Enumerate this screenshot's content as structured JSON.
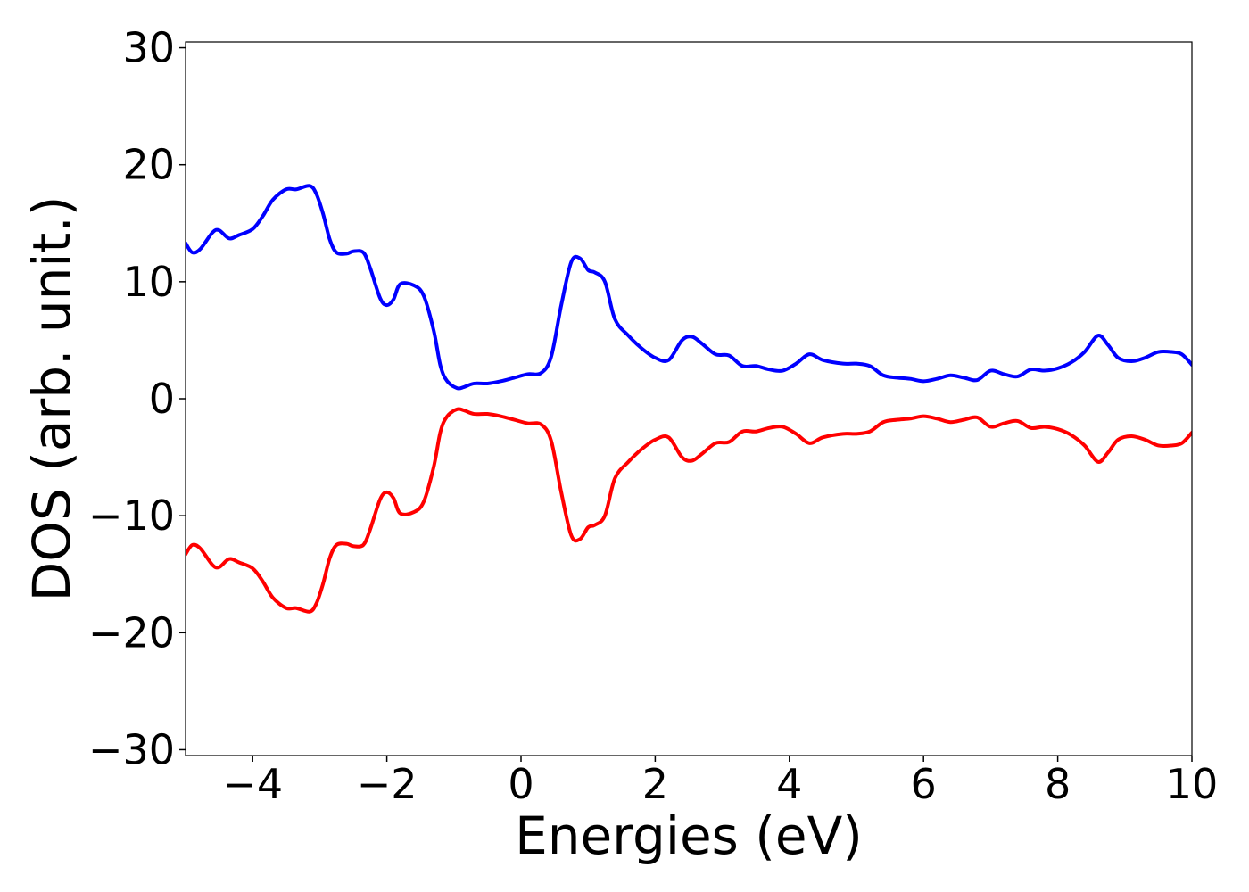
{
  "chart_data": {
    "type": "line",
    "xlabel": "Energies (eV)",
    "ylabel": "DOS (arb. unit.)",
    "xlim": [
      -5,
      10
    ],
    "ylim": [
      -30.5,
      30.5
    ],
    "x_ticks": [
      -4,
      -2,
      0,
      2,
      4,
      6,
      8,
      10
    ],
    "x_tick_labels": [
      "−4",
      "−2",
      "0",
      "2",
      "4",
      "6",
      "8",
      "10"
    ],
    "y_ticks": [
      -30,
      -20,
      -10,
      0,
      10,
      20,
      30
    ],
    "y_tick_labels": [
      "−30",
      "−20",
      "−10",
      "0",
      "10",
      "20",
      "30"
    ],
    "grid": false,
    "series": [
      {
        "color": "#0000ff",
        "x": [
          -5.0,
          -4.9,
          -4.78,
          -4.6,
          -4.5,
          -4.35,
          -4.2,
          -4.0,
          -3.85,
          -3.7,
          -3.5,
          -3.35,
          -3.15,
          -3.05,
          -2.95,
          -2.85,
          -2.75,
          -2.6,
          -2.5,
          -2.35,
          -2.25,
          -2.1,
          -2.0,
          -1.9,
          -1.8,
          -1.6,
          -1.45,
          -1.3,
          -1.2,
          -1.1,
          -0.95,
          -0.85,
          -0.7,
          -0.5,
          -0.3,
          -0.1,
          0.1,
          0.3,
          0.45,
          0.6,
          0.75,
          0.88,
          1.0,
          1.1,
          1.25,
          1.4,
          1.6,
          1.8,
          2.0,
          2.2,
          2.4,
          2.55,
          2.7,
          2.9,
          3.1,
          3.3,
          3.5,
          3.7,
          3.9,
          4.1,
          4.3,
          4.5,
          4.8,
          5.0,
          5.2,
          5.4,
          5.6,
          5.8,
          6.0,
          6.2,
          6.4,
          6.6,
          6.8,
          7.0,
          7.2,
          7.4,
          7.6,
          7.8,
          8.0,
          8.2,
          8.4,
          8.6,
          8.75,
          8.9,
          9.1,
          9.3,
          9.5,
          9.7,
          9.85,
          10.0
        ],
        "values": [
          13.3,
          12.5,
          12.8,
          14.2,
          14.4,
          13.7,
          14.0,
          14.5,
          15.6,
          17.0,
          17.9,
          17.9,
          18.2,
          17.5,
          15.8,
          13.6,
          12.5,
          12.4,
          12.6,
          12.5,
          11.2,
          8.6,
          8.0,
          8.5,
          9.8,
          9.7,
          8.8,
          5.8,
          2.8,
          1.5,
          0.9,
          1.0,
          1.3,
          1.3,
          1.5,
          1.8,
          2.1,
          2.2,
          3.6,
          8.0,
          11.7,
          12.0,
          11.0,
          10.8,
          10.0,
          6.8,
          5.4,
          4.3,
          3.5,
          3.3,
          5.0,
          5.3,
          4.7,
          3.8,
          3.7,
          2.8,
          2.8,
          2.5,
          2.4,
          3.0,
          3.8,
          3.3,
          3.0,
          3.0,
          2.8,
          2.0,
          1.8,
          1.7,
          1.5,
          1.7,
          2.0,
          1.8,
          1.6,
          2.4,
          2.1,
          1.9,
          2.5,
          2.4,
          2.6,
          3.1,
          4.0,
          5.4,
          4.6,
          3.5,
          3.2,
          3.5,
          4.0,
          4.0,
          3.8,
          2.9
        ]
      },
      {
        "color": "#ff0000",
        "x": [
          -5.0,
          -4.9,
          -4.78,
          -4.6,
          -4.5,
          -4.35,
          -4.2,
          -4.0,
          -3.85,
          -3.7,
          -3.5,
          -3.35,
          -3.15,
          -3.05,
          -2.95,
          -2.85,
          -2.75,
          -2.6,
          -2.5,
          -2.35,
          -2.25,
          -2.1,
          -2.0,
          -1.9,
          -1.8,
          -1.6,
          -1.45,
          -1.3,
          -1.2,
          -1.1,
          -0.95,
          -0.85,
          -0.7,
          -0.5,
          -0.3,
          -0.1,
          0.1,
          0.3,
          0.45,
          0.6,
          0.75,
          0.88,
          1.0,
          1.1,
          1.25,
          1.4,
          1.6,
          1.8,
          2.0,
          2.2,
          2.4,
          2.55,
          2.7,
          2.9,
          3.1,
          3.3,
          3.5,
          3.7,
          3.9,
          4.1,
          4.3,
          4.5,
          4.8,
          5.0,
          5.2,
          5.4,
          5.6,
          5.8,
          6.0,
          6.2,
          6.4,
          6.6,
          6.8,
          7.0,
          7.2,
          7.4,
          7.6,
          7.8,
          8.0,
          8.2,
          8.4,
          8.6,
          8.75,
          8.9,
          9.1,
          9.3,
          9.5,
          9.7,
          9.85,
          10.0
        ],
        "values": [
          -13.3,
          -12.5,
          -12.8,
          -14.2,
          -14.4,
          -13.7,
          -14.0,
          -14.5,
          -15.6,
          -17.0,
          -17.9,
          -17.9,
          -18.2,
          -17.5,
          -15.8,
          -13.6,
          -12.5,
          -12.4,
          -12.6,
          -12.5,
          -11.2,
          -8.6,
          -8.0,
          -8.5,
          -9.8,
          -9.7,
          -8.8,
          -5.8,
          -2.8,
          -1.5,
          -0.9,
          -1.0,
          -1.3,
          -1.3,
          -1.5,
          -1.8,
          -2.1,
          -2.2,
          -3.6,
          -8.0,
          -11.7,
          -12.0,
          -11.0,
          -10.8,
          -10.0,
          -6.8,
          -5.4,
          -4.3,
          -3.5,
          -3.3,
          -5.0,
          -5.3,
          -4.7,
          -3.8,
          -3.7,
          -2.8,
          -2.8,
          -2.5,
          -2.4,
          -3.0,
          -3.8,
          -3.3,
          -3.0,
          -3.0,
          -2.8,
          -2.0,
          -1.8,
          -1.7,
          -1.5,
          -1.7,
          -2.0,
          -1.8,
          -1.6,
          -2.4,
          -2.1,
          -1.9,
          -2.5,
          -2.4,
          -2.6,
          -3.1,
          -4.0,
          -5.4,
          -4.6,
          -3.5,
          -3.2,
          -3.5,
          -4.0,
          -4.0,
          -3.8,
          -2.9
        ]
      }
    ]
  }
}
